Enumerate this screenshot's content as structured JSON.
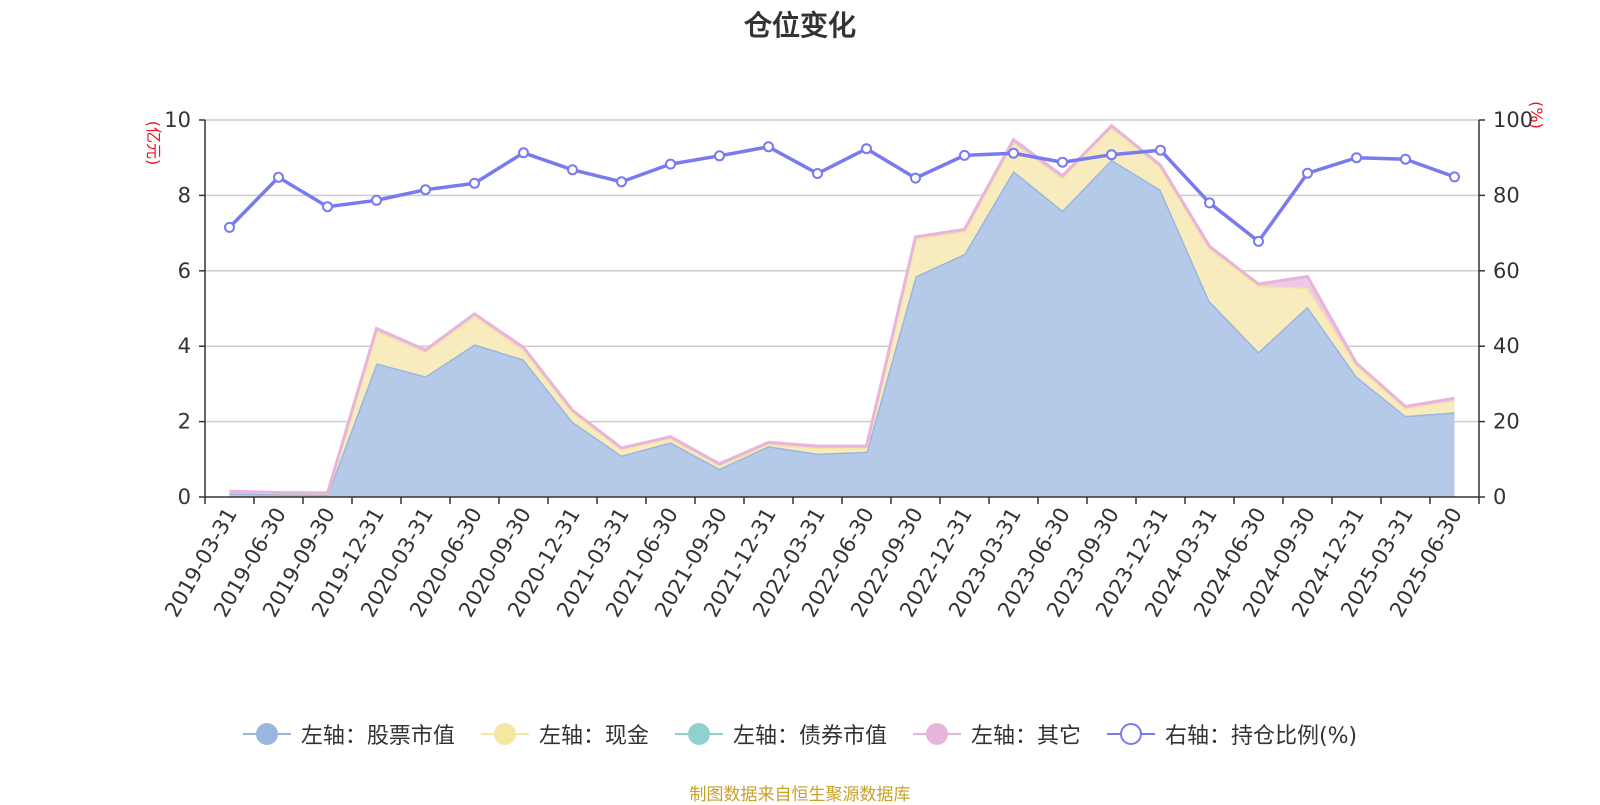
{
  "chart_data": {
    "type": "area",
    "title": "仓位变化",
    "ylabel_left": "(亿元)",
    "ylabel_right": "(%)",
    "ylim_left": [
      0,
      10
    ],
    "ylim_right": [
      0,
      100
    ],
    "yticks_left": [
      0,
      2,
      4,
      6,
      8,
      10
    ],
    "yticks_right": [
      0,
      20,
      40,
      60,
      80,
      100
    ],
    "grid": true,
    "legend_position": "bottom",
    "stacked": true,
    "categories": [
      "2019-03-31",
      "2019-06-30",
      "2019-09-30",
      "2019-12-31",
      "2020-03-31",
      "2020-06-30",
      "2020-09-30",
      "2020-12-31",
      "2021-03-31",
      "2021-06-30",
      "2021-09-30",
      "2021-12-31",
      "2022-03-31",
      "2022-06-30",
      "2022-09-30",
      "2022-12-31",
      "2023-03-31",
      "2023-06-30",
      "2023-09-30",
      "2023-12-31",
      "2024-03-31",
      "2024-06-30",
      "2024-09-30",
      "2024-12-31",
      "2025-03-31",
      "2025-06-30"
    ],
    "series": [
      {
        "name": "左轴：股票市值",
        "axis": "left",
        "color": "#9ab6e0",
        "fill": "#b5cae8",
        "values": [
          0.1,
          0.08,
          0.07,
          3.55,
          3.2,
          4.05,
          3.65,
          2.0,
          1.1,
          1.45,
          0.75,
          1.35,
          1.15,
          1.2,
          5.85,
          6.45,
          8.65,
          7.6,
          8.95,
          8.15,
          5.2,
          3.85,
          5.05,
          3.2,
          2.15,
          2.25
        ]
      },
      {
        "name": "左轴：现金",
        "axis": "left",
        "color": "#f5e6a2",
        "fill": "#f8ecbf",
        "values": [
          0.04,
          0.03,
          0.03,
          0.85,
          0.65,
          0.75,
          0.25,
          0.25,
          0.17,
          0.1,
          0.08,
          0.05,
          0.15,
          0.1,
          1.0,
          0.6,
          0.75,
          0.85,
          0.85,
          0.6,
          1.4,
          1.75,
          0.5,
          0.3,
          0.2,
          0.3
        ]
      },
      {
        "name": "左轴：债券市值",
        "axis": "left",
        "color": "#8fd1cf",
        "fill": "#a6dcda",
        "values": [
          0,
          0,
          0,
          0,
          0,
          0,
          0,
          0,
          0,
          0,
          0,
          0,
          0,
          0,
          0,
          0,
          0,
          0,
          0,
          0,
          0,
          0,
          0,
          0,
          0,
          0
        ]
      },
      {
        "name": "左轴：其它",
        "axis": "left",
        "color": "#e8b4dc",
        "fill": "#efc8e6",
        "values": [
          0.01,
          0.01,
          0.01,
          0.07,
          0.05,
          0.06,
          0.07,
          0.05,
          0.03,
          0.05,
          0.05,
          0.05,
          0.05,
          0.05,
          0.05,
          0.05,
          0.08,
          0.07,
          0.05,
          0.05,
          0.05,
          0.05,
          0.3,
          0.05,
          0.05,
          0.07
        ]
      },
      {
        "name": "右轴：持仓比例(%)",
        "axis": "right",
        "type": "line",
        "color": "#7a7af0",
        "values": [
          71.5,
          84.8,
          77.0,
          78.7,
          81.5,
          83.2,
          91.3,
          86.8,
          83.6,
          88.3,
          90.5,
          92.9,
          85.8,
          92.4,
          84.6,
          90.6,
          91.2,
          88.8,
          90.8,
          92.0,
          78.0,
          67.8,
          85.9,
          90.0,
          89.6,
          84.9
        ]
      }
    ]
  },
  "source_text": "制图数据来自恒生聚源数据库"
}
